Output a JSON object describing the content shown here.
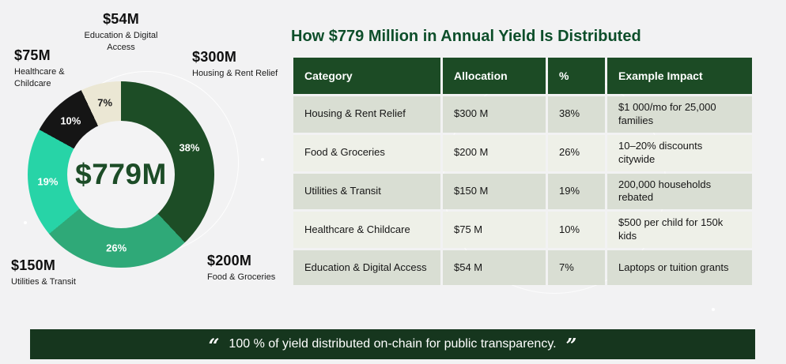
{
  "chart_data": {
    "type": "pie",
    "title": "How $779 Million in Annual Yield Is Distributed",
    "center_label": "$779M",
    "categories": [
      "Housing & Rent Relief",
      "Food & Groceries",
      "Utilities & Transit",
      "Healthcare & Childcare",
      "Education & Digital Access"
    ],
    "values": [
      300,
      200,
      150,
      75,
      54
    ],
    "percents": [
      38,
      26,
      19,
      10,
      7
    ],
    "amount_labels": [
      "$300M",
      "$200M",
      "$150M",
      "$75M",
      "$54M"
    ],
    "colors": [
      "#1d4d26",
      "#2fa978",
      "#27d4a7",
      "#151515",
      "#ebe7d4"
    ],
    "pct_label_colors": [
      "#ffffff",
      "#ffffff",
      "#ffffff",
      "#ffffff",
      "#1c1c1c"
    ],
    "legend_position": "around-donut"
  },
  "table": {
    "headers": [
      "Category",
      "Allocation",
      "%",
      "Example Impact"
    ],
    "rows": [
      [
        "Housing & Rent Relief",
        "$300 M",
        "38%",
        "$1 000/mo for 25,000 families"
      ],
      [
        "Food & Groceries",
        "$200 M",
        "26%",
        "10–20% discounts citywide"
      ],
      [
        "Utilities & Transit",
        "$150 M",
        "19%",
        "200,000 households rebated"
      ],
      [
        "Healthcare & Childcare",
        "$75 M",
        "10%",
        "$500 per child for 150k kids"
      ],
      [
        "Education & Digital Access",
        "$54 M",
        "7%",
        "Laptops or tuition grants"
      ]
    ]
  },
  "footer": {
    "open_quote": "“",
    "quote": "100 % of yield distributed on-chain for public transparency.",
    "close_quote": "”"
  }
}
